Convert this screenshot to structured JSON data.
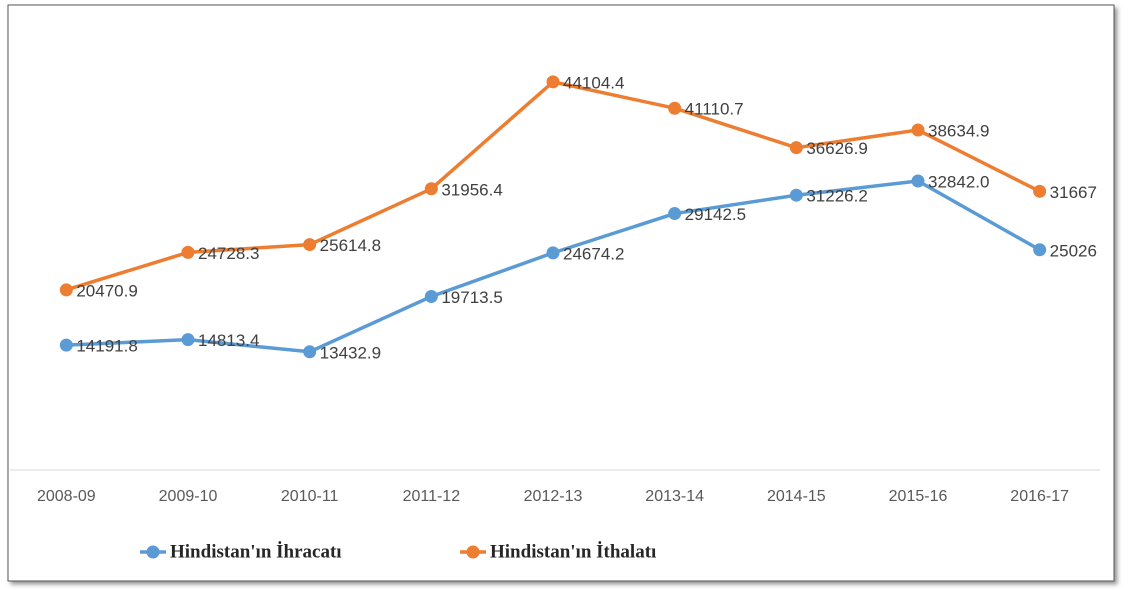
{
  "chart_data": {
    "type": "line",
    "categories": [
      "2008-09",
      "2009-10",
      "2010-11",
      "2011-12",
      "2012-13",
      "2013-14",
      "2014-15",
      "2015-16",
      "2016-17"
    ],
    "series": [
      {
        "name": "Hindistan'ın İhracatı",
        "color": "#5b9bd5",
        "values": [
          14191.8,
          14813.4,
          13432.9,
          19713.5,
          24674.2,
          29142.5,
          31226.2,
          32842.0,
          25026
        ],
        "value_labels": [
          "14191.8",
          "14813.4",
          "13432.9",
          "19713.5",
          "24674.2",
          "29142.5",
          "31226.2",
          "32842.0",
          "25026"
        ]
      },
      {
        "name": "Hindistan'ın İthalatı",
        "color": "#ed7d31",
        "values": [
          20470.9,
          24728.3,
          25614.8,
          31956.4,
          44104.4,
          41110.7,
          36626.9,
          38634.9,
          31667
        ],
        "value_labels": [
          "20470.9",
          "24728.3",
          "25614.8",
          "31956.4",
          "44104.4",
          "41110.7",
          "36626.9",
          "38634.9",
          "31667"
        ]
      }
    ],
    "ylim": [
      0,
      50000
    ]
  }
}
